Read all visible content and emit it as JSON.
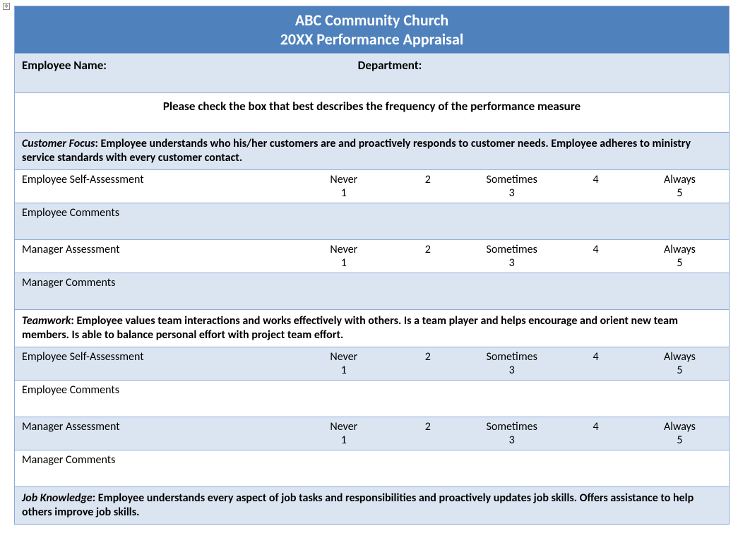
{
  "colors": {
    "header_bg": "#4f81bd",
    "shade_bg": "#dbe5f1",
    "border": "#8faadc",
    "text": "#000000"
  },
  "header": {
    "line1": "ABC Community Church",
    "line2": "20XX Performance Appraisal"
  },
  "info": {
    "employee_label": "Employee Name:",
    "department_label": "Department:"
  },
  "instruction": "Please check the box that best describes the frequency of the performance measure",
  "scale": {
    "labels": [
      "Never",
      "",
      "Sometimes",
      "",
      "Always"
    ],
    "numbers": [
      "1",
      "2",
      "3",
      "4",
      "5"
    ]
  },
  "rows": {
    "employee_self": "Employee Self-Assessment",
    "employee_comments": "Employee Comments",
    "manager_assess": "Manager Assessment",
    "manager_comments": "Manager Comments"
  },
  "sections": [
    {
      "title": "Customer Focus",
      "desc": ":  Employee understands who his/her customers are and proactively responds to customer needs. Employee adheres to ministry service standards with every customer contact."
    },
    {
      "title": "Teamwork",
      "desc": ":  Employee values team interactions and works effectively with others.  Is a team player and helps encourage and orient new team members.  Is able to balance personal effort with project team effort."
    },
    {
      "title": "Job Knowledge",
      "desc": ":  Employee understands every aspect of job tasks and responsibilities and proactively updates job skills.  Offers assistance to help others improve job skills."
    }
  ]
}
